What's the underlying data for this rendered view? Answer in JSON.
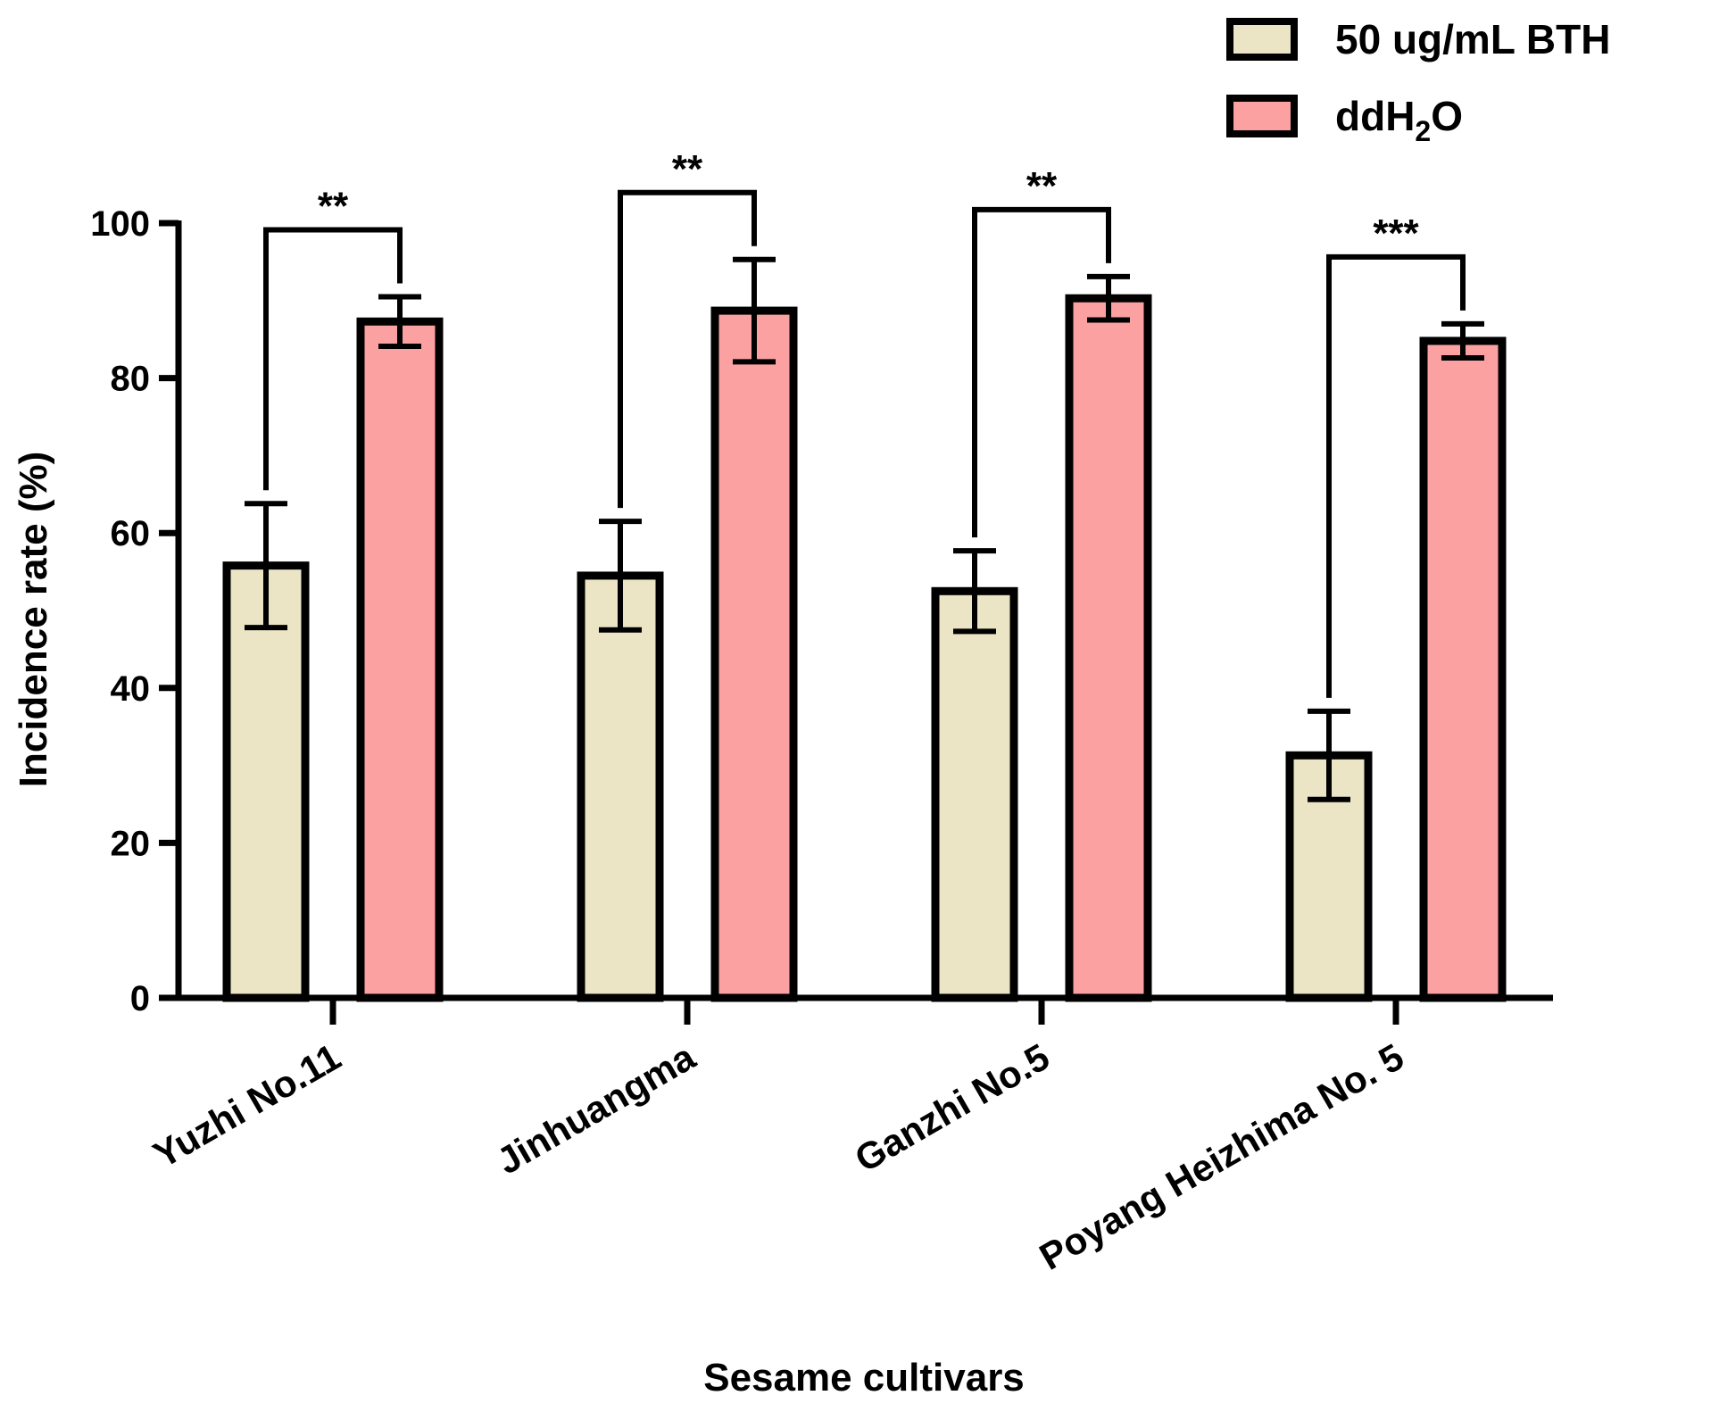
{
  "chart_data": {
    "type": "bar",
    "title": "",
    "xlabel": "Sesame cultivars",
    "ylabel": "Incidence rate (%)",
    "ylim": [
      0,
      100
    ],
    "yticks": [
      0,
      20,
      40,
      60,
      80,
      100
    ],
    "grid": false,
    "legend_position": "top-right",
    "categories": [
      "Yuzhi No.11",
      "Jinhuangma",
      "Ganzhi No.5",
      "Poyang Heizhima No. 5"
    ],
    "series": [
      {
        "name": "50 ug/mL BTH",
        "color": "#ebe5c5",
        "values": [
          55.8,
          54.5,
          52.5,
          31.3
        ],
        "errors": [
          8.0,
          7.0,
          5.2,
          5.7
        ]
      },
      {
        "name": "ddH2O",
        "name_main": "ddH",
        "name_sub": "2",
        "name_tail": "O",
        "color": "#fca1a1",
        "values": [
          87.3,
          88.7,
          90.3,
          84.8
        ],
        "errors": [
          3.2,
          6.6,
          2.8,
          2.2
        ]
      }
    ],
    "significance": [
      {
        "category": "Yuzhi No.11",
        "label": "**"
      },
      {
        "category": "Jinhuangma",
        "label": "**"
      },
      {
        "category": "Ganzhi No.5",
        "label": "**"
      },
      {
        "category": "Poyang Heizhima No. 5",
        "label": "***"
      }
    ]
  }
}
